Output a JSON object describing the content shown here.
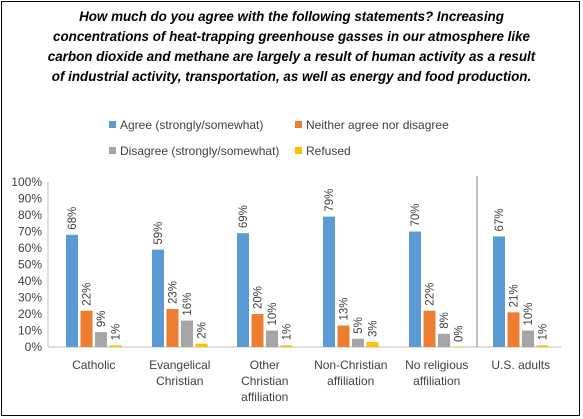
{
  "chart_data": {
    "type": "bar",
    "title": "How much do you agree with the following statements? Increasing concentrations of heat-trapping greenhouse gasses in our atmosphere like carbon dioxide and methane are largely a result of human activity as a result of industrial activity, transportation, as well as energy and food production.",
    "xlabel": "",
    "ylabel": "",
    "ylim": [
      0,
      100
    ],
    "yticks": [
      "0%",
      "10%",
      "20%",
      "30%",
      "40%",
      "50%",
      "60%",
      "70%",
      "80%",
      "90%",
      "100%"
    ],
    "grid": false,
    "legend": "top",
    "categories": [
      [
        "Catholic"
      ],
      [
        "Evangelical",
        "Christian"
      ],
      [
        "Other",
        "Christian",
        "affiliation"
      ],
      [
        "Non-Christian",
        "affiliation"
      ],
      [
        "No religious",
        "affiliation"
      ],
      [
        "U.S. adults"
      ]
    ],
    "series": [
      {
        "name": "Agree (strongly/somewhat)",
        "color": "#5B9BD5",
        "values": [
          68,
          59,
          69,
          79,
          70,
          67
        ],
        "labels": [
          "68%",
          "59%",
          "69%",
          "79%",
          "70%",
          "67%"
        ]
      },
      {
        "name": "Neither agree nor disagree",
        "color": "#ED7D31",
        "values": [
          22,
          23,
          20,
          13,
          22,
          21
        ],
        "labels": [
          "22%",
          "23%",
          "20%",
          "13%",
          "22%",
          "21%"
        ]
      },
      {
        "name": "Disagree (strongly/somewhat)",
        "color": "#A5A5A5",
        "values": [
          9,
          16,
          10,
          5,
          8,
          10
        ],
        "labels": [
          "9%",
          "16%",
          "10%",
          "5%",
          "8%",
          "10%"
        ]
      },
      {
        "name": "Refused",
        "color": "#FFC000",
        "values": [
          1,
          2,
          1,
          3,
          0,
          1
        ],
        "labels": [
          "1%",
          "2%",
          "1%",
          "3%",
          "0%",
          "1%"
        ]
      }
    ]
  }
}
